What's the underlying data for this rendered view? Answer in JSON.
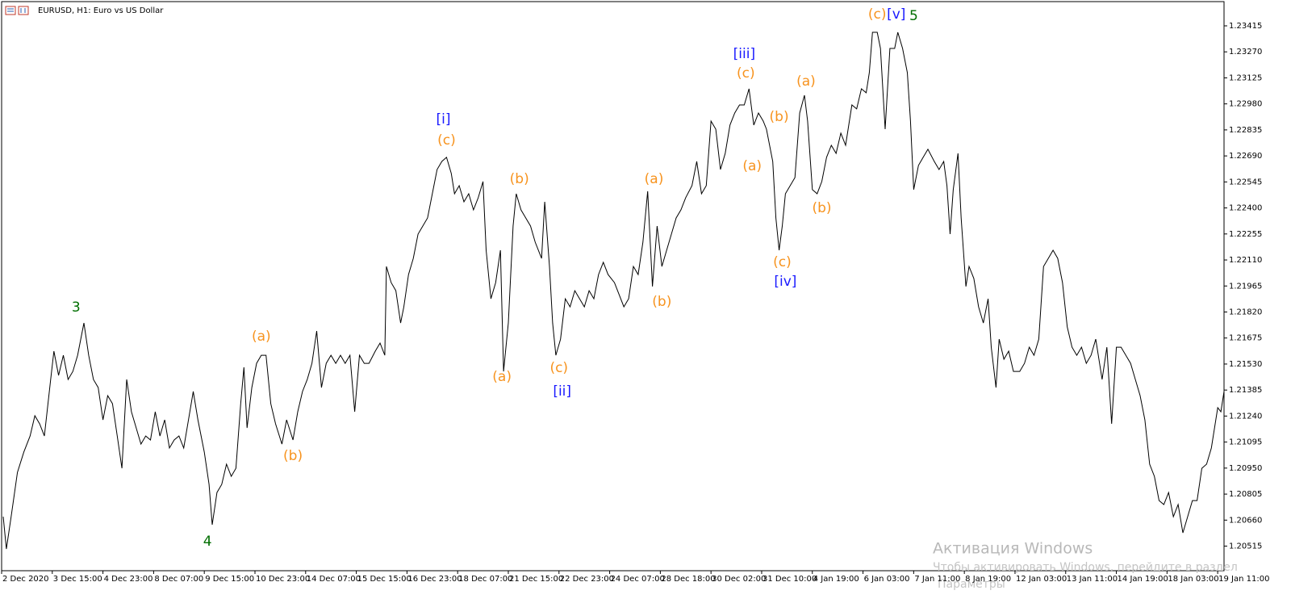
{
  "chart_data": {
    "type": "line",
    "title": "EURUSD, H1:  Euro vs US Dollar",
    "x": [
      1,
      3,
      6,
      10,
      14,
      18,
      21,
      24,
      27,
      31,
      33,
      36,
      39,
      42,
      45,
      48,
      50,
      52,
      55,
      58,
      61,
      64,
      67,
      70,
      73,
      76,
      79,
      82,
      85,
      88,
      91,
      94,
      97,
      100,
      103,
      106,
      109,
      112,
      115,
      118,
      121,
      124,
      128,
      131,
      133,
      136,
      139,
      142,
      145,
      148,
      151,
      153,
      155,
      158,
      161,
      164,
      167,
      170,
      173,
      177,
      180,
      184,
      187,
      190,
      193,
      196,
      199,
      202,
      205,
      208,
      211,
      214,
      217,
      220,
      223,
      226,
      229,
      232,
      236,
      239,
      242,
      243,
      246,
      249,
      252,
      254,
      257,
      260,
      263,
      266,
      269,
      272,
      275,
      278,
      281,
      284,
      286,
      289,
      292,
      295,
      298,
      301,
      304,
      306,
      309,
      312,
      315,
      317,
      320,
      323,
      325,
      328,
      331,
      334,
      337,
      341,
      343,
      346,
      348,
      350,
      353,
      356,
      359,
      362,
      365,
      368,
      371,
      374,
      377,
      380,
      383,
      387,
      390,
      393,
      396,
      399,
      402,
      405,
      408,
      411,
      414,
      417,
      420,
      423,
      426,
      429,
      432,
      436,
      439,
      442,
      445,
      448,
      451,
      454,
      457,
      460,
      463,
      466,
      469,
      472,
      475,
      478,
      481,
      483,
      487,
      489,
      491,
      493,
      495,
      498,
      501,
      504,
      507,
      509,
      512,
      515,
      518,
      521,
      524,
      527,
      530,
      533,
      537,
      540,
      543,
      546,
      548,
      550,
      553,
      555,
      558,
      561,
      564,
      566,
      569,
      572,
      574,
      576,
      579,
      582,
      585,
      589,
      592,
      595,
      597,
      599,
      601,
      604,
      606,
      609,
      611,
      614,
      617,
      620,
      623,
      625,
      628,
      630,
      633,
      636,
      639,
      643,
      646,
      649,
      652,
      655,
      658,
      661,
      664,
      667,
      670,
      673,
      676,
      679,
      682,
      685,
      688,
      691,
      695,
      698,
      701,
      704,
      707,
      710,
      713,
      716,
      719,
      722,
      725,
      728,
      731,
      734,
      737,
      740,
      743,
      746,
      749,
      752,
      755,
      758,
      761,
      764,
      768,
      770,
      772
    ],
    "series": [
      {
        "color": "#000000",
        "values": [
          1.20679,
          1.20499,
          1.20679,
          1.20926,
          1.21039,
          1.21129,
          1.21242,
          1.21197,
          1.21129,
          1.21444,
          1.21602,
          1.21467,
          1.21579,
          1.21444,
          1.21489,
          1.21579,
          1.21669,
          1.21759,
          1.21579,
          1.21444,
          1.21399,
          1.21219,
          1.21354,
          1.21309,
          1.21129,
          1.20949,
          1.21444,
          1.21264,
          1.21174,
          1.21084,
          1.21129,
          1.21107,
          1.21264,
          1.21129,
          1.21219,
          1.21062,
          1.21107,
          1.21129,
          1.21062,
          1.21219,
          1.21377,
          1.21219,
          1.21039,
          1.20859,
          1.20634,
          1.20814,
          1.20859,
          1.20972,
          1.20904,
          1.20949,
          1.21309,
          1.21512,
          1.21174,
          1.21399,
          1.21534,
          1.21579,
          1.21579,
          1.21309,
          1.21197,
          1.21084,
          1.21219,
          1.21107,
          1.21264,
          1.21377,
          1.21444,
          1.21534,
          1.21714,
          1.21399,
          1.21534,
          1.21579,
          1.21534,
          1.21579,
          1.21534,
          1.21579,
          1.21264,
          1.21579,
          1.21534,
          1.21534,
          1.21602,
          1.21647,
          1.21579,
          1.22074,
          1.21984,
          1.21939,
          1.21759,
          1.21849,
          1.22029,
          1.22119,
          1.22254,
          1.22299,
          1.22344,
          1.22479,
          1.22614,
          1.22659,
          1.22682,
          1.22592,
          1.22479,
          1.22524,
          1.22434,
          1.22479,
          1.22389,
          1.22457,
          1.22547,
          1.22164,
          1.21894,
          1.21984,
          1.22164,
          1.21489,
          1.21759,
          1.22299,
          1.22479,
          1.22389,
          1.22344,
          1.22299,
          1.22209,
          1.22119,
          1.22434,
          1.22074,
          1.21759,
          1.21579,
          1.21669,
          1.21894,
          1.21849,
          1.21939,
          1.21894,
          1.21849,
          1.21939,
          1.21894,
          1.22029,
          1.22097,
          1.22029,
          1.21984,
          1.21917,
          1.21849,
          1.21894,
          1.22074,
          1.22029,
          1.22209,
          1.22493,
          1.21962,
          1.22299,
          1.22074,
          1.22164,
          1.22254,
          1.22344,
          1.22389,
          1.22457,
          1.22524,
          1.22659,
          1.22479,
          1.22524,
          1.22884,
          1.22839,
          1.22614,
          1.22704,
          1.22862,
          1.22929,
          1.22974,
          1.22974,
          1.23064,
          1.22862,
          1.22929,
          1.22884,
          1.22839,
          1.22659,
          1.22344,
          1.22164,
          1.22299,
          1.22479,
          1.22524,
          1.22569,
          1.22929,
          1.23028,
          1.22884,
          1.22502,
          1.22479,
          1.22547,
          1.22682,
          1.22749,
          1.22704,
          1.22817,
          1.22749,
          1.22974,
          1.22952,
          1.23064,
          1.23042,
          1.23154,
          1.23379,
          1.23379,
          1.23289,
          1.22839,
          1.23289,
          1.23289,
          1.23379,
          1.23289,
          1.23154,
          1.22884,
          1.22502,
          1.22637,
          1.22682,
          1.22727,
          1.22659,
          1.22614,
          1.22659,
          1.22524,
          1.22254,
          1.22502,
          1.22704,
          1.22344,
          1.21962,
          1.22074,
          1.22007,
          1.21849,
          1.21759,
          1.21894,
          1.21624,
          1.21399,
          1.21669,
          1.21557,
          1.21602,
          1.21489,
          1.21489,
          1.21534,
          1.21624,
          1.21579,
          1.21669,
          1.22074,
          1.22119,
          1.22164,
          1.22119,
          1.21984,
          1.21737,
          1.21624,
          1.21579,
          1.21624,
          1.21534,
          1.21579,
          1.21669,
          1.21444,
          1.21624,
          1.21197,
          1.21624,
          1.21624,
          1.21579,
          1.21534,
          1.21444,
          1.21354,
          1.21219,
          1.20972,
          1.20904,
          1.20769,
          1.20747,
          1.20814,
          1.20679,
          1.20747,
          1.20589,
          1.20679,
          1.20769,
          1.20769,
          1.20949,
          1.20972,
          1.21062,
          1.21287,
          1.21264,
          1.21377
        ]
      }
    ],
    "xlim": [
      0,
      772
    ],
    "ylim": [
      1.20378,
      1.2355
    ],
    "xticks": [
      {
        "value": 0,
        "label": "2 Dec 2020"
      },
      {
        "value": 32,
        "label": "3 Dec 15:00"
      },
      {
        "value": 64,
        "label": "4 Dec 23:00"
      },
      {
        "value": 96,
        "label": "8 Dec 07:00"
      },
      {
        "value": 128,
        "label": "9 Dec 15:00"
      },
      {
        "value": 160,
        "label": "10 Dec 23:00"
      },
      {
        "value": 192,
        "label": "14 Dec 07:00"
      },
      {
        "value": 224,
        "label": "15 Dec 15:00"
      },
      {
        "value": 256,
        "label": "16 Dec 23:00"
      },
      {
        "value": 288,
        "label": "18 Dec 07:00"
      },
      {
        "value": 320,
        "label": "21 Dec 15:00"
      },
      {
        "value": 352,
        "label": "22 Dec 23:00"
      },
      {
        "value": 384,
        "label": "24 Dec 07:00"
      },
      {
        "value": 416,
        "label": "28 Dec 18:00"
      },
      {
        "value": 448,
        "label": "30 Dec 02:00"
      },
      {
        "value": 480,
        "label": "31 Dec 10:00"
      },
      {
        "value": 512,
        "label": "4 Jan 19:00"
      },
      {
        "value": 544,
        "label": "6 Jan 03:00"
      },
      {
        "value": 576,
        "label": "7 Jan 11:00"
      },
      {
        "value": 608,
        "label": "8 Jan 19:00"
      },
      {
        "value": 640,
        "label": "12 Jan 03:00"
      },
      {
        "value": 672,
        "label": "13 Jan 11:00"
      },
      {
        "value": 704,
        "label": "14 Jan 19:00"
      },
      {
        "value": 736,
        "label": "18 Jan 03:00"
      },
      {
        "value": 768,
        "label": "19 Jan 11:00"
      }
    ],
    "yticks": [
      1.20515,
      {
        "value": 1.2066,
        "label": "1.20660"
      },
      1.20805,
      {
        "value": 1.2095,
        "label": "1.20950"
      },
      1.21095,
      {
        "value": 1.2124,
        "label": "1.21240"
      },
      1.21385,
      {
        "value": 1.2153,
        "label": "1.21530"
      },
      1.21675,
      {
        "value": 1.2182,
        "label": "1.21820"
      },
      1.21965,
      {
        "value": 1.2211,
        "label": "1.22110"
      },
      1.22255,
      {
        "value": 1.224,
        "label": "1.22400"
      },
      1.22545,
      {
        "value": 1.2269,
        "label": "1.22690"
      },
      1.22835,
      {
        "value": 1.2298,
        "label": "1.22980"
      },
      1.23125,
      {
        "value": 1.2327,
        "label": "1.23270"
      },
      1.23415
    ],
    "annotations": [
      {
        "text": "3",
        "x": 47,
        "y": 1.21845,
        "color": "#006e00"
      },
      {
        "text": "4",
        "x": 130,
        "y": 1.2054,
        "color": "#006e00"
      },
      {
        "text": "(a)",
        "x": 164,
        "y": 1.21683,
        "color": "#f7931e"
      },
      {
        "text": "(b)",
        "x": 184,
        "y": 1.21017,
        "color": "#f7931e"
      },
      {
        "text": "[i]",
        "x": 279,
        "y": 1.22893,
        "color": "#1a1aff"
      },
      {
        "text": "(c)",
        "x": 281,
        "y": 1.22776,
        "color": "#f7931e"
      },
      {
        "text": "(b)",
        "x": 327,
        "y": 1.2256,
        "color": "#f7931e"
      },
      {
        "text": "(a)",
        "x": 316,
        "y": 1.21458,
        "color": "#f7931e"
      },
      {
        "text": "(c)",
        "x": 352,
        "y": 1.21507,
        "color": "#f7931e"
      },
      {
        "text": "[ii]",
        "x": 354,
        "y": 1.21377,
        "color": "#1a1aff"
      },
      {
        "text": "(a)",
        "x": 412,
        "y": 1.2256,
        "color": "#f7931e"
      },
      {
        "text": "(b)",
        "x": 417,
        "y": 1.21876,
        "color": "#f7931e"
      },
      {
        "text": "[iii]",
        "x": 469,
        "y": 1.23258,
        "color": "#1a1aff"
      },
      {
        "text": "(c)",
        "x": 470,
        "y": 1.2315,
        "color": "#f7931e"
      },
      {
        "text": "(b)",
        "x": 491,
        "y": 1.22907,
        "color": "#f7931e"
      },
      {
        "text": "(a)",
        "x": 474,
        "y": 1.22632,
        "color": "#f7931e"
      },
      {
        "text": "(a)",
        "x": 508,
        "y": 1.23105,
        "color": "#f7931e"
      },
      {
        "text": "(b)",
        "x": 518,
        "y": 1.22398,
        "color": "#f7931e"
      },
      {
        "text": "(c)",
        "x": 493,
        "y": 1.22097,
        "color": "#f7931e"
      },
      {
        "text": "[iv]",
        "x": 495,
        "y": 1.21989,
        "color": "#1a1aff"
      },
      {
        "text": "(c)",
        "x": 553,
        "y": 1.23478,
        "color": "#f7931e"
      },
      {
        "text": "[v]",
        "x": 565,
        "y": 1.23478,
        "color": "#1a1aff"
      },
      {
        "text": "5",
        "x": 576,
        "y": 1.23469,
        "color": "#006e00"
      }
    ]
  },
  "watermark": {
    "title": "Активация Windows",
    "line1": "Чтобы активировать Windows, перейдите в раздел",
    "line2": "Параметры"
  }
}
